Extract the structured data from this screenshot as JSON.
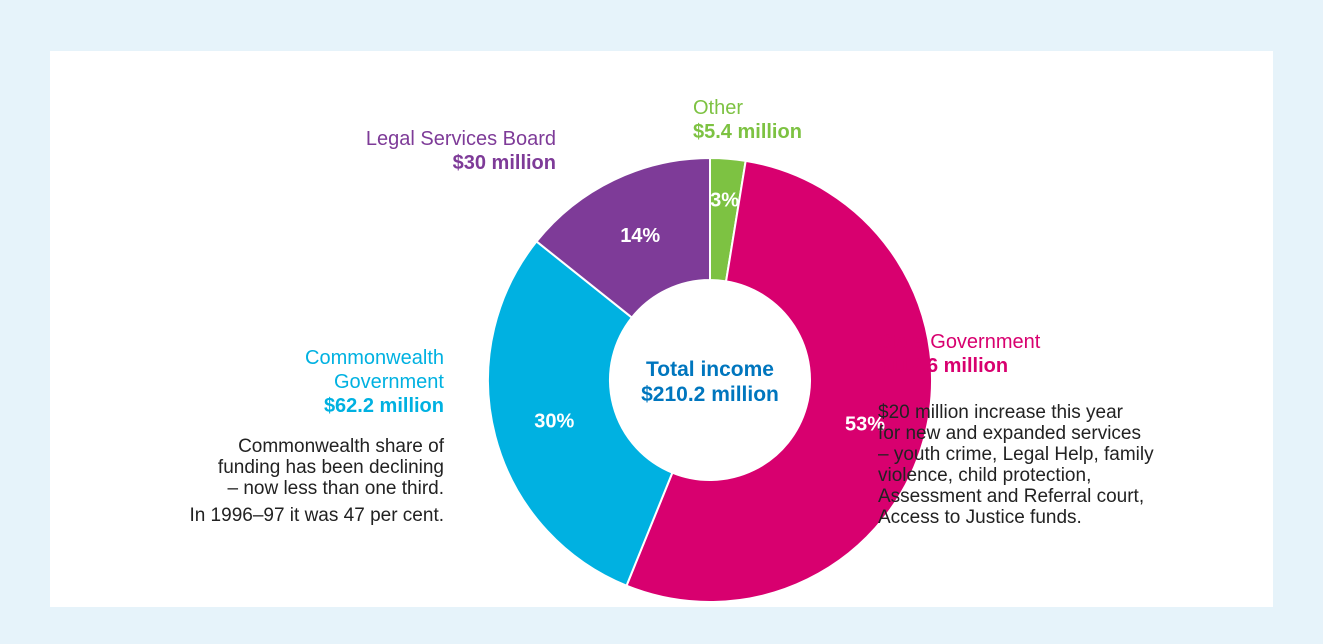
{
  "chart_data": {
    "type": "pie",
    "style": "donut",
    "center_label": [
      "Total income",
      "$210.2 million"
    ],
    "slices": [
      {
        "name": "Other",
        "amount_label": "$5.4 million",
        "value": 5.4,
        "percent_label": "3%",
        "color": "#7dc242"
      },
      {
        "name": "State Government",
        "amount_label": "$112.6 million",
        "value": 112.6,
        "percent_label": "53%",
        "color": "#d8006f"
      },
      {
        "name": "Commonwealth Government",
        "name_lines": [
          "Commonwealth",
          "Government"
        ],
        "amount_label": "$62.2 million",
        "value": 62.2,
        "percent_label": "30%",
        "color": "#00b1e1"
      },
      {
        "name": "Legal Services Board",
        "amount_label": "$30 million",
        "value": 30,
        "percent_label": "14%",
        "color": "#7e3b98"
      }
    ],
    "annotations": {
      "state": [
        "$20 million increase this year",
        "for new and expanded services",
        "– youth crime, Legal Help, family",
        "violence, child protection,",
        "Assessment and Referral court,",
        "Access to Justice funds."
      ],
      "commonwealth": [
        "Commonwealth share of",
        "funding has been declining",
        "– now less than one third."
      ],
      "commonwealth_history": "In 1996–97 it was 47 per cent."
    },
    "center_color": "#0076be"
  }
}
